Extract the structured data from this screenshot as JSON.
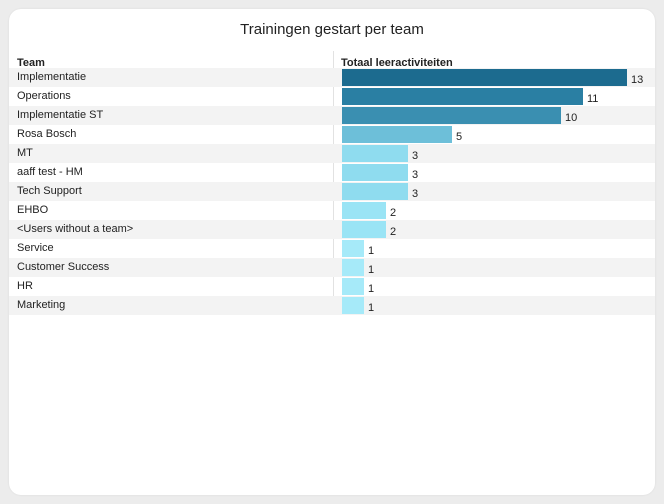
{
  "title": "Trainingen gestart per team",
  "columns": {
    "team": "Team",
    "total": "Totaal leeractiviteiten"
  },
  "max_value": 13,
  "rows": [
    {
      "team": "Implementatie",
      "value": 13,
      "color": "#1c6b8f"
    },
    {
      "team": "Operations",
      "value": 11,
      "color": "#2a7fa3"
    },
    {
      "team": "Implementatie ST",
      "value": 10,
      "color": "#3a8fb1"
    },
    {
      "team": "Rosa Bosch",
      "value": 5,
      "color": "#6dbfd9"
    },
    {
      "team": "MT",
      "value": 3,
      "color": "#8fdcef"
    },
    {
      "team": "aaff test - HM",
      "value": 3,
      "color": "#8fdcef"
    },
    {
      "team": "Tech Support",
      "value": 3,
      "color": "#8fdcef"
    },
    {
      "team": "EHBO",
      "value": 2,
      "color": "#9ae4f5"
    },
    {
      "team": "<Users without a team>",
      "value": 2,
      "color": "#9ae4f5"
    },
    {
      "team": "Service",
      "value": 1,
      "color": "#a6eaf9"
    },
    {
      "team": "Customer Success",
      "value": 1,
      "color": "#a6eaf9"
    },
    {
      "team": "HR",
      "value": 1,
      "color": "#a6eaf9"
    },
    {
      "team": "Marketing",
      "value": 1,
      "color": "#a6eaf9"
    }
  ]
}
